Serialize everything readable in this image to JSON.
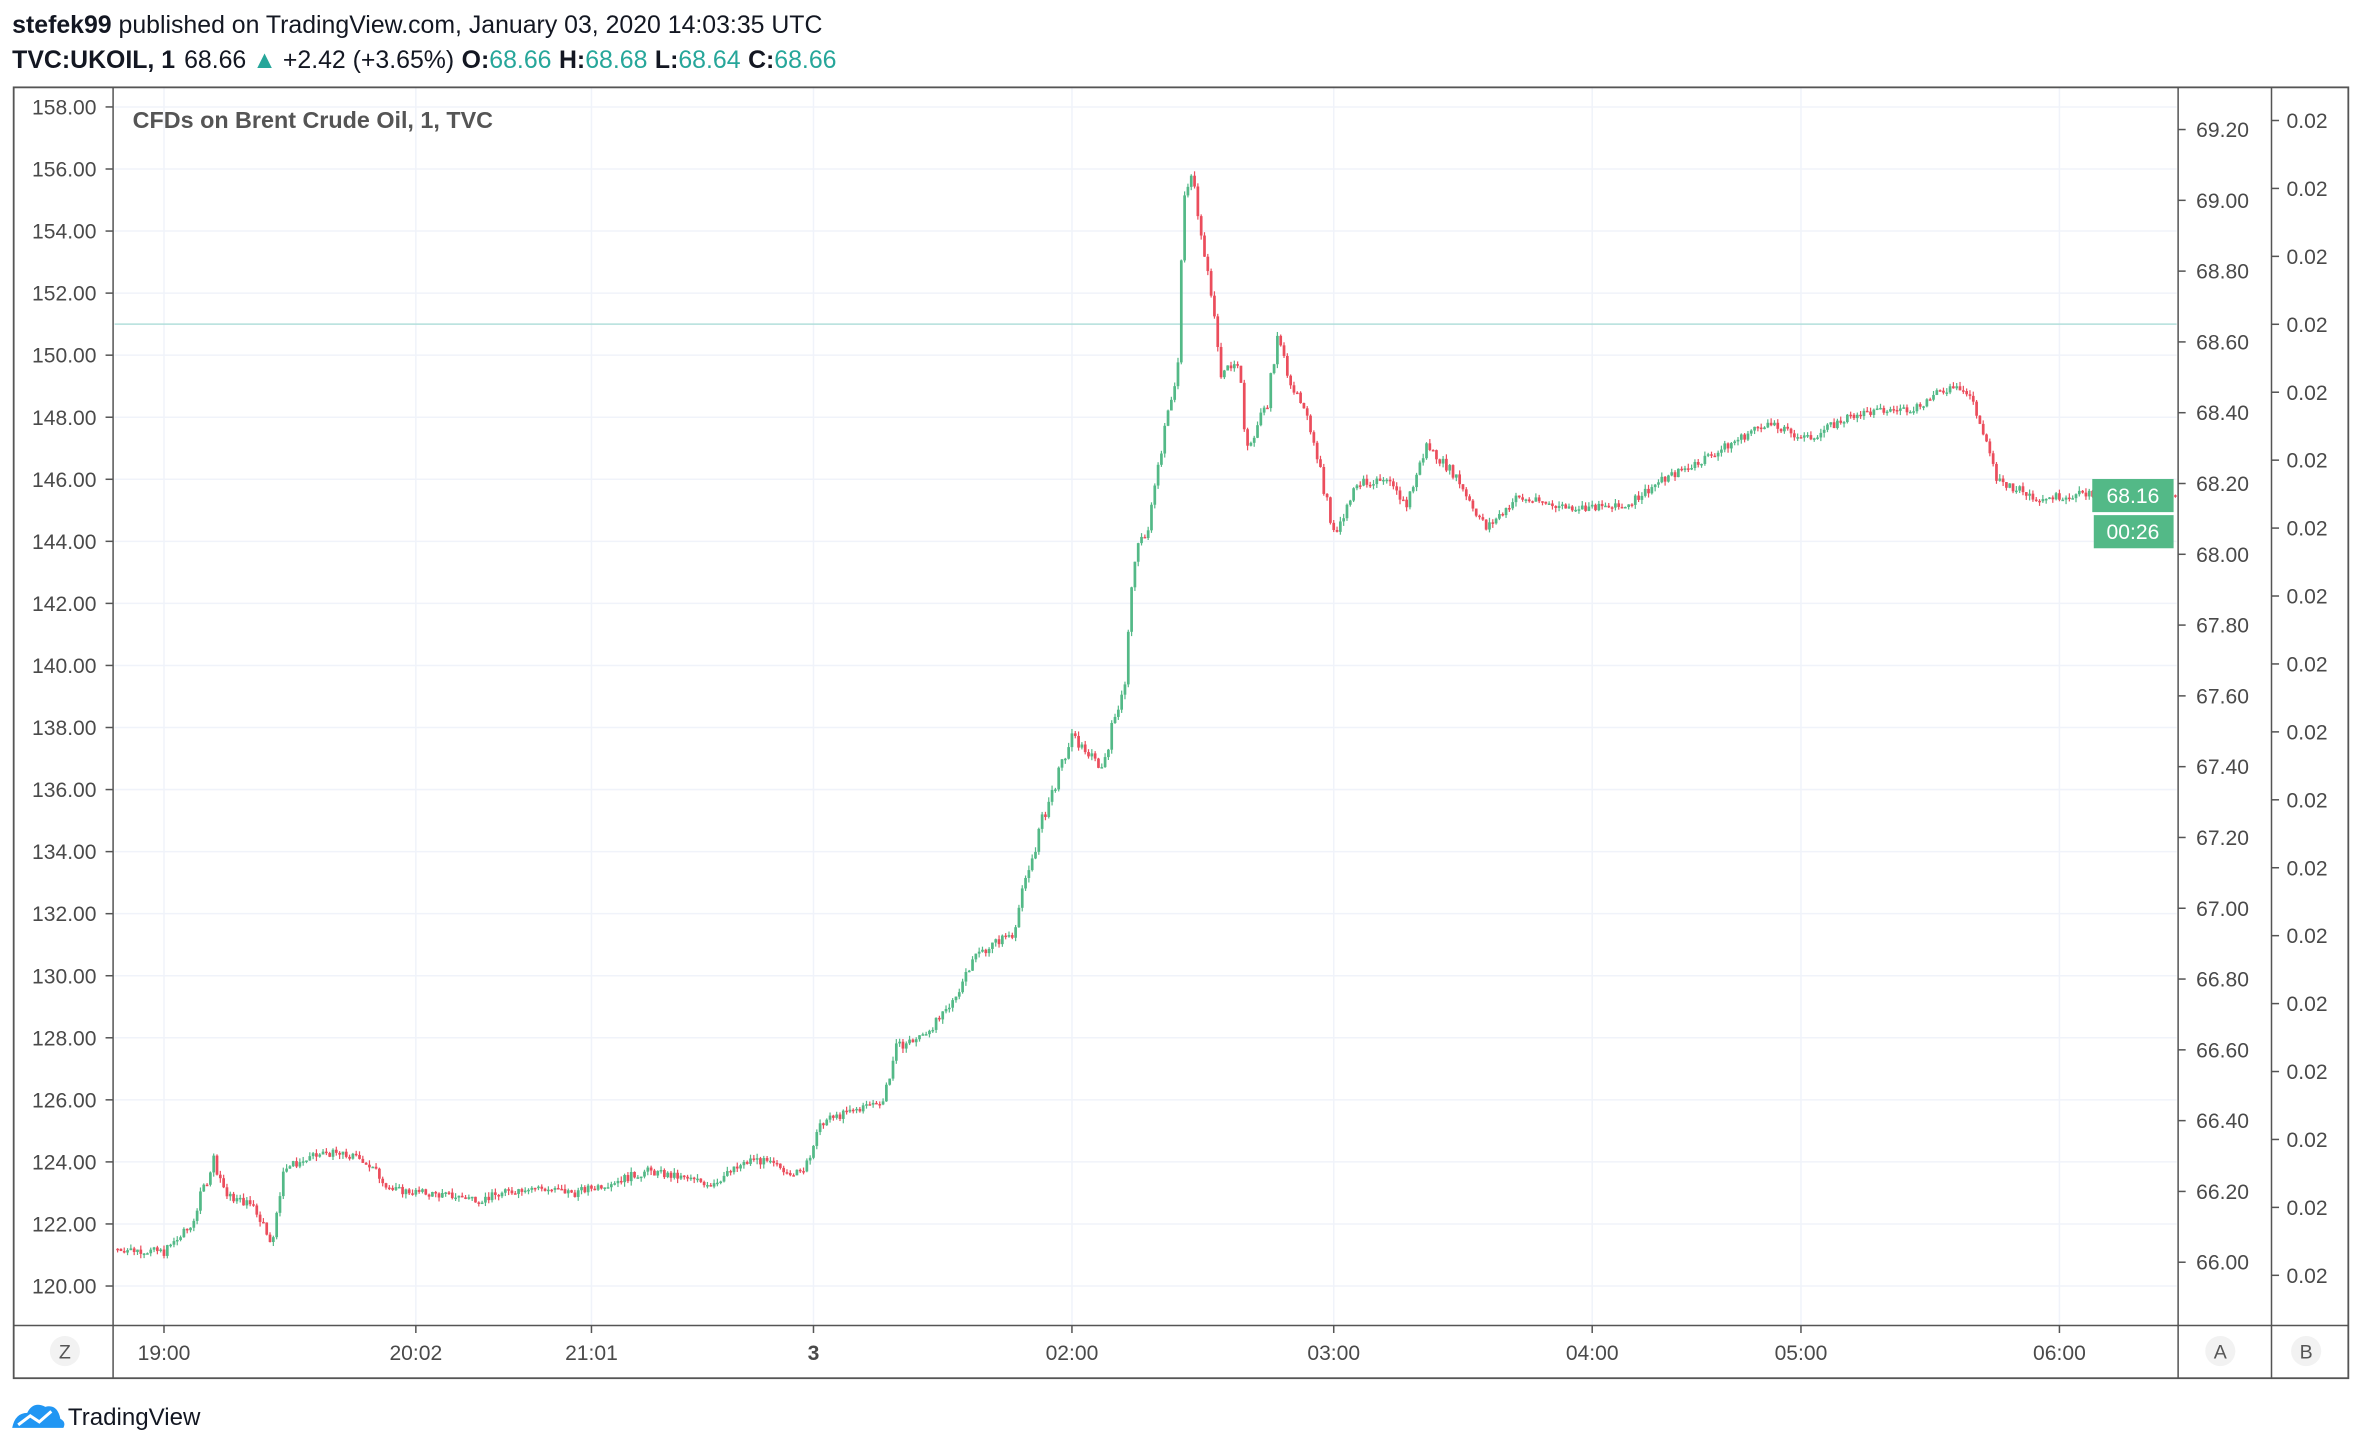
{
  "header": {
    "author": "stefek99",
    "published": " published on TradingView.com, January 03, 2020 14:03:35 UTC",
    "symbol": "TVC:UKOIL, 1",
    "last": "68.66",
    "change": "+2.42 (+3.65%)",
    "o_label": "O:",
    "o": "68.66",
    "h_label": "H:",
    "h": "68.68",
    "l_label": "L:",
    "l": "68.64",
    "c_label": "C:",
    "c": "68.66"
  },
  "footer": {
    "logo": "TradingView"
  },
  "buttons": {
    "z": "Z",
    "a": "A",
    "b": "B"
  },
  "badges": {
    "price": "68.16",
    "countdown": "00:26"
  },
  "colors": {
    "up": "#53b987",
    "down": "#eb4d5c",
    "accent": "#26a69a"
  },
  "chart_data": {
    "type": "candlestick",
    "title": "CFDs on Brent Crude Oil, 1, TVC",
    "bars": 622,
    "left_axis": {
      "ylim": [
        119,
        158.6
      ],
      "ticks": [
        "158.00",
        "156.00",
        "154.00",
        "152.00",
        "150.00",
        "148.00",
        "146.00",
        "144.00",
        "142.00",
        "140.00",
        "138.00",
        "136.00",
        "134.00",
        "132.00",
        "130.00",
        "128.00",
        "126.00",
        "124.00",
        "122.00",
        "120.00"
      ]
    },
    "right_axis": {
      "ticks": [
        "69.20",
        "69.00",
        "68.80",
        "68.60",
        "68.40",
        "68.20",
        "68.00",
        "67.80",
        "67.60",
        "67.40",
        "67.20",
        "67.00",
        "66.80",
        "66.60",
        "66.40",
        "66.20",
        "66.00"
      ]
    },
    "right_axis2": {
      "ticks": [
        "0.02",
        "0.02",
        "0.02",
        "0.02",
        "0.02",
        "0.02",
        "0.02",
        "0.02",
        "0.02",
        "0.02",
        "0.02",
        "0.02",
        "0.02",
        "0.02",
        "0.02",
        "0.02",
        "0.02",
        "0.02"
      ]
    },
    "time_ticks": [
      {
        "label": "19:00",
        "bar": 14
      },
      {
        "label": "20:02",
        "bar": 90
      },
      {
        "label": "21:01",
        "bar": 143
      },
      {
        "label": "3",
        "bar": 210,
        "bold": true
      },
      {
        "label": "02:00",
        "bar": 288
      },
      {
        "label": "03:00",
        "bar": 367
      },
      {
        "label": "04:00",
        "bar": 445
      },
      {
        "label": "05:00",
        "bar": 508
      },
      {
        "label": "06:00",
        "bar": 586
      }
    ],
    "reference_line": 151.0,
    "close_keypoints": [
      [
        0,
        121.2
      ],
      [
        14,
        121.1
      ],
      [
        22,
        121.9
      ],
      [
        29,
        124.1
      ],
      [
        33,
        122.9
      ],
      [
        41,
        122.6
      ],
      [
        47,
        121.4
      ],
      [
        50,
        123.8
      ],
      [
        63,
        124.3
      ],
      [
        74,
        124.1
      ],
      [
        83,
        123.1
      ],
      [
        110,
        122.8
      ],
      [
        124,
        123.2
      ],
      [
        138,
        123.0
      ],
      [
        160,
        123.7
      ],
      [
        179,
        123.3
      ],
      [
        192,
        124.1
      ],
      [
        206,
        123.6
      ],
      [
        213,
        125.3
      ],
      [
        231,
        126.0
      ],
      [
        235,
        127.7
      ],
      [
        242,
        128.0
      ],
      [
        251,
        128.9
      ],
      [
        258,
        130.6
      ],
      [
        270,
        131.4
      ],
      [
        279,
        135.0
      ],
      [
        288,
        137.7
      ],
      [
        297,
        136.7
      ],
      [
        304,
        139.6
      ],
      [
        307,
        143.5
      ],
      [
        311,
        144.5
      ],
      [
        315,
        146.9
      ],
      [
        320,
        149.8
      ],
      [
        322,
        155.1
      ],
      [
        324,
        156.1
      ],
      [
        329,
        152.7
      ],
      [
        333,
        149.3
      ],
      [
        338,
        150.0
      ],
      [
        341,
        146.9
      ],
      [
        347,
        148.6
      ],
      [
        350,
        150.5
      ],
      [
        356,
        148.6
      ],
      [
        361,
        147.4
      ],
      [
        367,
        144.2
      ],
      [
        374,
        145.9
      ],
      [
        383,
        145.9
      ],
      [
        389,
        145.2
      ],
      [
        395,
        147.1
      ],
      [
        404,
        146.1
      ],
      [
        413,
        144.4
      ],
      [
        422,
        145.4
      ],
      [
        438,
        145.1
      ],
      [
        454,
        145.1
      ],
      [
        465,
        145.9
      ],
      [
        483,
        146.9
      ],
      [
        497,
        147.8
      ],
      [
        510,
        147.3
      ],
      [
        524,
        148.1
      ],
      [
        542,
        148.3
      ],
      [
        555,
        149.1
      ],
      [
        560,
        148.5
      ],
      [
        567,
        146.0
      ],
      [
        579,
        145.4
      ],
      [
        592,
        145.5
      ],
      [
        610,
        145.8
      ],
      [
        621,
        145.4
      ]
    ]
  }
}
